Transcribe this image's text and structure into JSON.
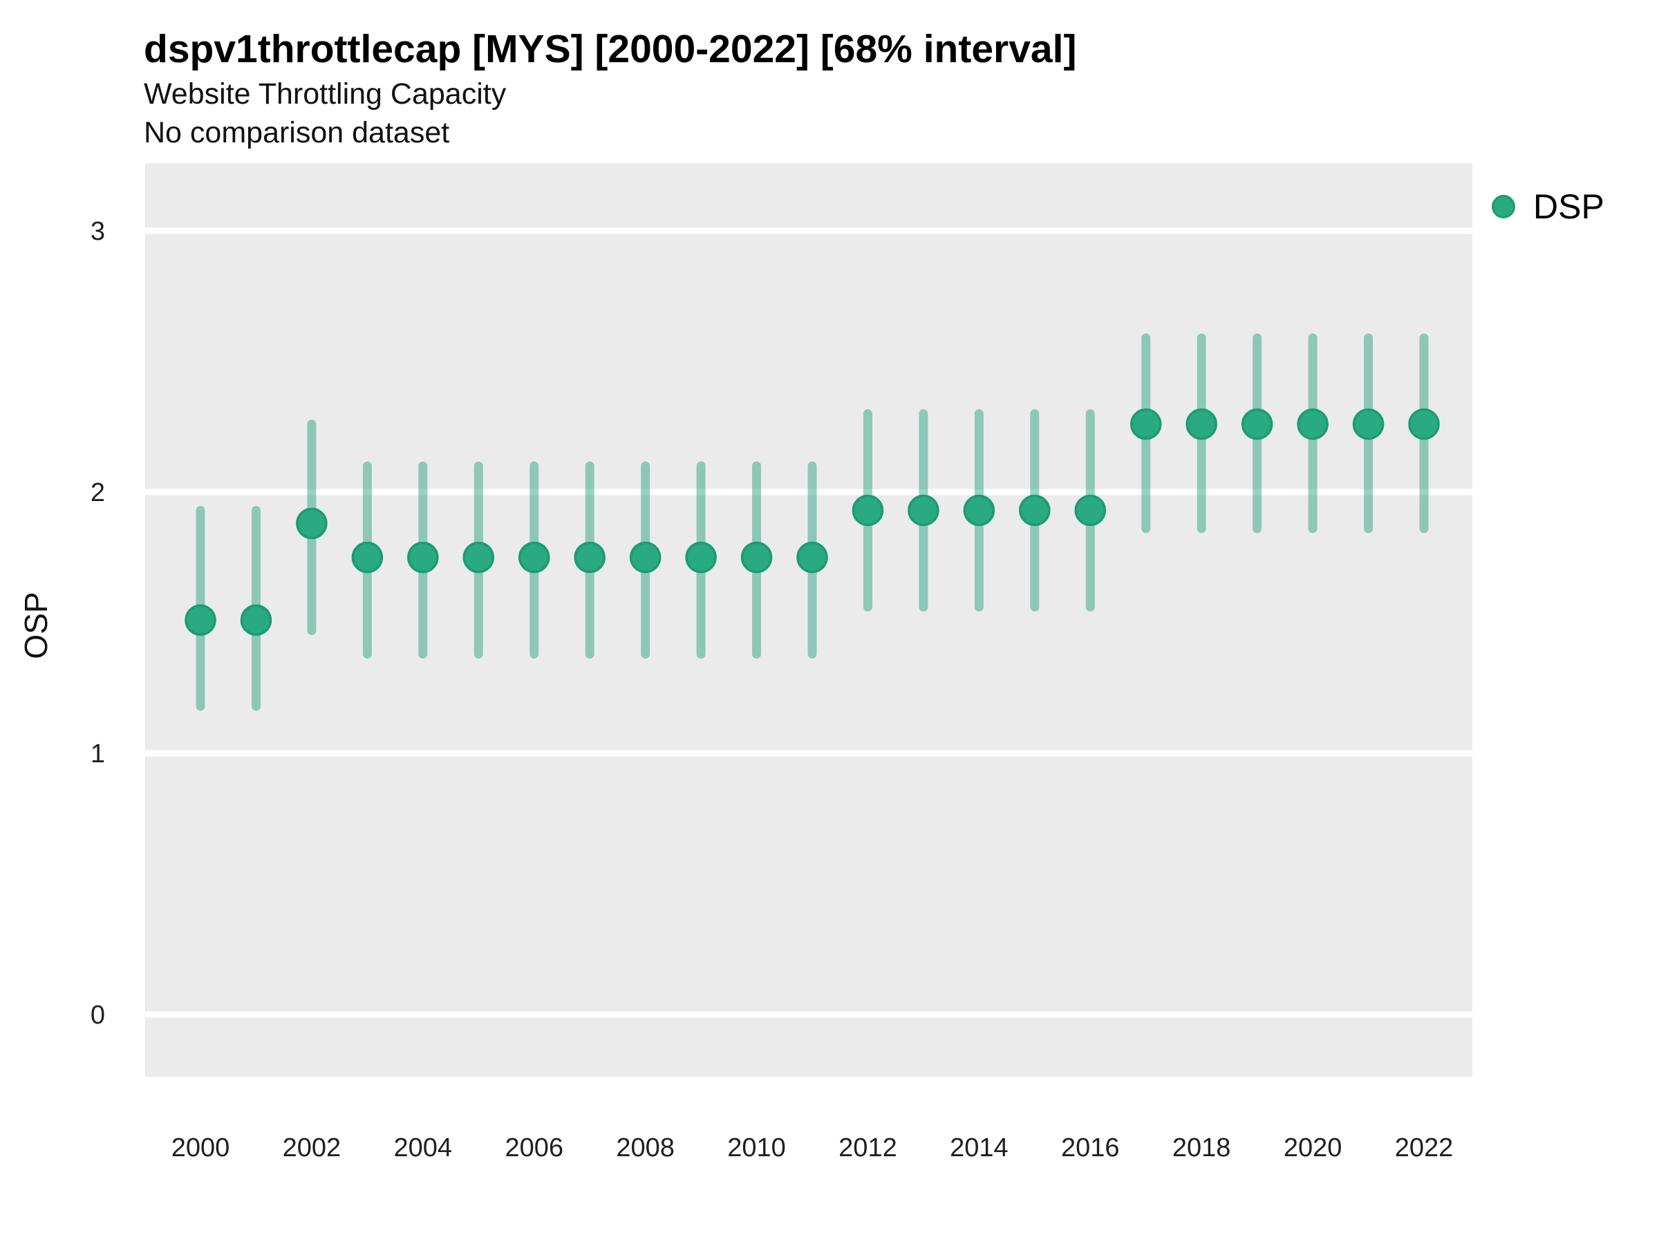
{
  "header": {
    "title": "dspv1throttlecap [MYS] [2000-2022] [68% interval]",
    "subtitle": "Website Throttling Capacity",
    "note": "No comparison dataset"
  },
  "colors": {
    "page_bg": "#ffffff",
    "panel_bg": "#ebebeb",
    "gridline": "#ffffff",
    "point_fill": "#2aaa80",
    "point_stroke": "#1d9b72",
    "interval_line": "rgba(27,158,119,0.45)",
    "title_text": "#000000",
    "tick_text": "#1f1f1f"
  },
  "chart_data": {
    "type": "pointrange",
    "title": "dspv1throttlecap [MYS] [2000-2022] [68% interval]",
    "subtitle": "Website Throttling Capacity",
    "note": "No comparison dataset",
    "xlabel": "",
    "ylabel": "OSP",
    "interval": "68%",
    "grid": "major-horizontal",
    "legend_position": "right-top",
    "x_ticks": [
      2000,
      2002,
      2004,
      2006,
      2008,
      2010,
      2012,
      2014,
      2016,
      2018,
      2020,
      2022
    ],
    "y_ticks": [
      0,
      1,
      2,
      3
    ],
    "xlim": [
      1999,
      2023
    ],
    "ylim": [
      -0.24,
      3.26
    ],
    "series": [
      {
        "name": "DSP",
        "points": [
          {
            "year": 2000,
            "mid": 1.51,
            "lo": 1.18,
            "hi": 1.93
          },
          {
            "year": 2001,
            "mid": 1.51,
            "lo": 1.18,
            "hi": 1.93
          },
          {
            "year": 2002,
            "mid": 1.88,
            "lo": 1.47,
            "hi": 2.26
          },
          {
            "year": 2003,
            "mid": 1.75,
            "lo": 1.38,
            "hi": 2.1
          },
          {
            "year": 2004,
            "mid": 1.75,
            "lo": 1.38,
            "hi": 2.1
          },
          {
            "year": 2005,
            "mid": 1.75,
            "lo": 1.38,
            "hi": 2.1
          },
          {
            "year": 2006,
            "mid": 1.75,
            "lo": 1.38,
            "hi": 2.1
          },
          {
            "year": 2007,
            "mid": 1.75,
            "lo": 1.38,
            "hi": 2.1
          },
          {
            "year": 2008,
            "mid": 1.75,
            "lo": 1.38,
            "hi": 2.1
          },
          {
            "year": 2009,
            "mid": 1.75,
            "lo": 1.38,
            "hi": 2.1
          },
          {
            "year": 2010,
            "mid": 1.75,
            "lo": 1.38,
            "hi": 2.1
          },
          {
            "year": 2011,
            "mid": 1.75,
            "lo": 1.38,
            "hi": 2.1
          },
          {
            "year": 2012,
            "mid": 1.93,
            "lo": 1.56,
            "hi": 2.3
          },
          {
            "year": 2013,
            "mid": 1.93,
            "lo": 1.56,
            "hi": 2.3
          },
          {
            "year": 2014,
            "mid": 1.93,
            "lo": 1.56,
            "hi": 2.3
          },
          {
            "year": 2015,
            "mid": 1.93,
            "lo": 1.56,
            "hi": 2.3
          },
          {
            "year": 2016,
            "mid": 1.93,
            "lo": 1.56,
            "hi": 2.3
          },
          {
            "year": 2017,
            "mid": 2.26,
            "lo": 1.86,
            "hi": 2.59
          },
          {
            "year": 2018,
            "mid": 2.26,
            "lo": 1.86,
            "hi": 2.59
          },
          {
            "year": 2019,
            "mid": 2.26,
            "lo": 1.86,
            "hi": 2.59
          },
          {
            "year": 2020,
            "mid": 2.26,
            "lo": 1.86,
            "hi": 2.59
          },
          {
            "year": 2021,
            "mid": 2.26,
            "lo": 1.86,
            "hi": 2.59
          },
          {
            "year": 2022,
            "mid": 2.26,
            "lo": 1.86,
            "hi": 2.59
          }
        ]
      }
    ]
  }
}
